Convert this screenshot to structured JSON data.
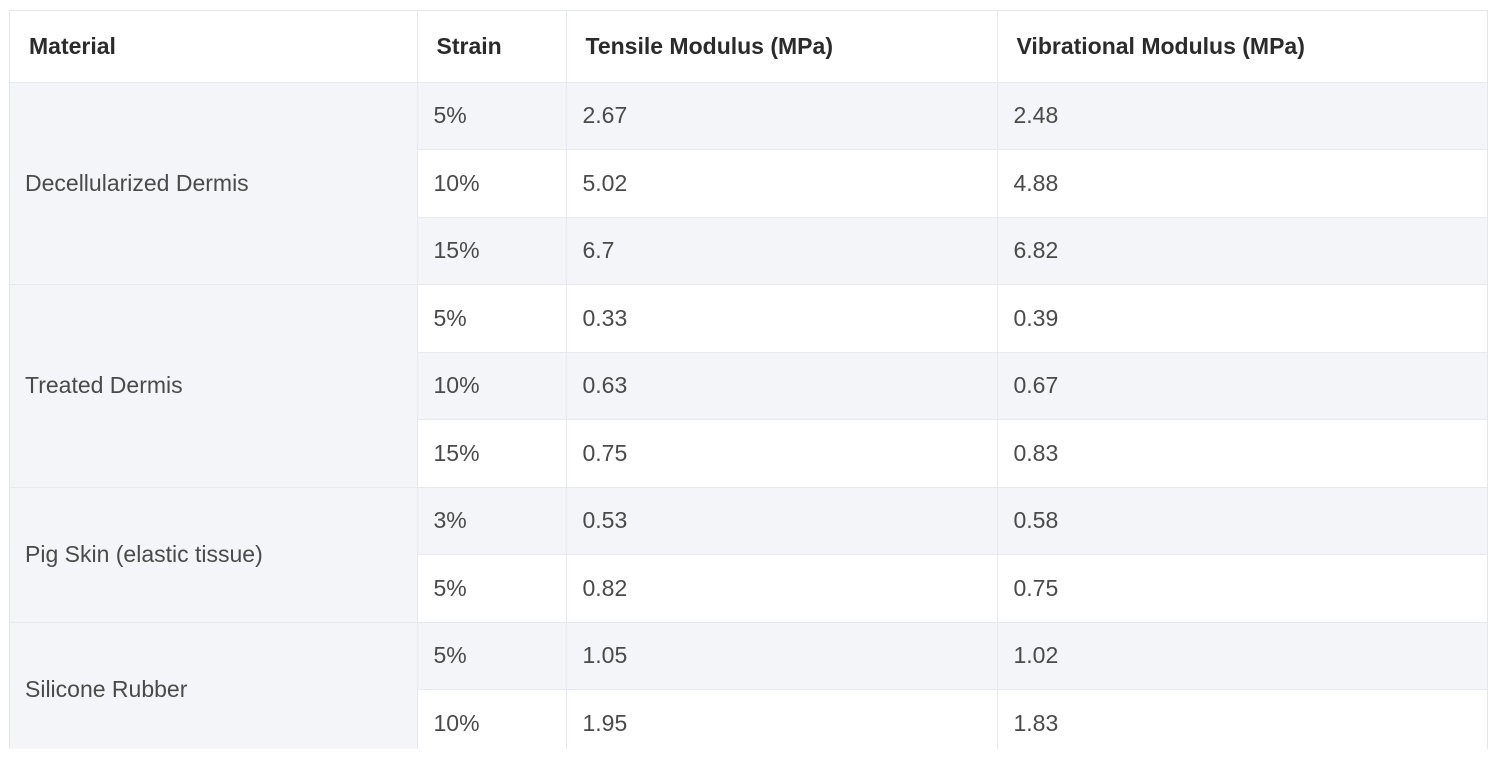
{
  "table": {
    "headers": [
      "Material",
      "Strain",
      "Tensile Modulus (MPa)",
      "Vibrational Modulus (MPa)"
    ],
    "groups": [
      {
        "material": "Decellularized Dermis",
        "rows": [
          {
            "strain": "5%",
            "tensile": "2.67",
            "vibrational": "2.48"
          },
          {
            "strain": "10%",
            "tensile": "5.02",
            "vibrational": "4.88"
          },
          {
            "strain": "15%",
            "tensile": "6.7",
            "vibrational": "6.82"
          }
        ]
      },
      {
        "material": "Treated Dermis",
        "rows": [
          {
            "strain": "5%",
            "tensile": "0.33",
            "vibrational": "0.39"
          },
          {
            "strain": "10%",
            "tensile": "0.63",
            "vibrational": "0.67"
          },
          {
            "strain": "15%",
            "tensile": "0.75",
            "vibrational": "0.83"
          }
        ]
      },
      {
        "material": "Pig Skin (elastic tissue)",
        "rows": [
          {
            "strain": "3%",
            "tensile": "0.53",
            "vibrational": "0.58"
          },
          {
            "strain": "5%",
            "tensile": "0.82",
            "vibrational": "0.75"
          }
        ]
      },
      {
        "material": "Silicone Rubber",
        "rows": [
          {
            "strain": "5%",
            "tensile": "1.05",
            "vibrational": "1.02"
          },
          {
            "strain": "10%",
            "tensile": "1.95",
            "vibrational": "1.83"
          }
        ]
      }
    ]
  }
}
